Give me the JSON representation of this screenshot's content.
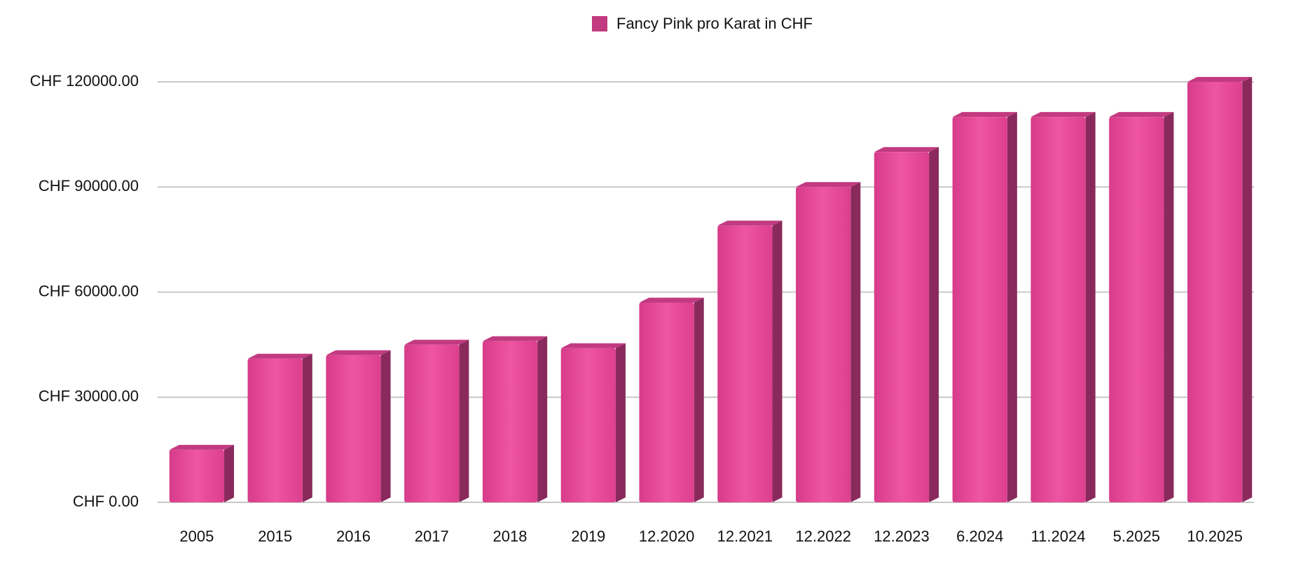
{
  "chart_data": {
    "type": "bar",
    "legend_label": "Fancy Pink pro Karat in CHF",
    "categories": [
      "2005",
      "2015",
      "2016",
      "2017",
      "2018",
      "2019",
      "12.2020",
      "12.2021",
      "12.2022",
      "12.2023",
      "6.2024",
      "11.2024",
      "5.2025",
      "10.2025"
    ],
    "values": [
      15000,
      41000,
      42000,
      45000,
      46000,
      44000,
      57000,
      79000,
      90000,
      100000,
      110000,
      110000,
      110000,
      120000
    ],
    "color": "#e8499a",
    "ylim": [
      0,
      125000
    ],
    "yticks": [
      {
        "value": 0,
        "label": "CHF 0.00"
      },
      {
        "value": 30000,
        "label": "CHF 30000.00"
      },
      {
        "value": 60000,
        "label": "CHF 60000.00"
      },
      {
        "value": 90000,
        "label": "CHF 90000.00"
      },
      {
        "value": 120000,
        "label": "CHF 120000.00"
      }
    ],
    "grid": true
  }
}
